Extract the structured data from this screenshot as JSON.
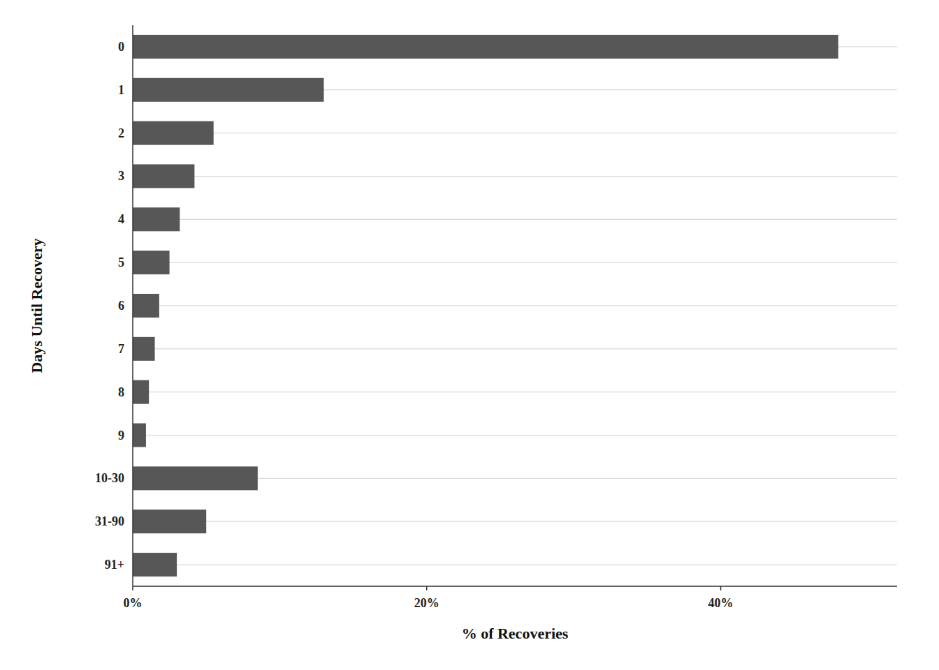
{
  "chart_data": {
    "type": "bar",
    "orientation": "horizontal",
    "categories": [
      "0",
      "1",
      "2",
      "3",
      "4",
      "5",
      "6",
      "7",
      "8",
      "9",
      "10-30",
      "31-90",
      "91+"
    ],
    "values": [
      48.0,
      13.0,
      5.5,
      4.2,
      3.2,
      2.5,
      1.8,
      1.5,
      1.1,
      0.9,
      8.5,
      5.0,
      3.0
    ],
    "color": "#575757",
    "xlabel": "% of Recoveries",
    "ylabel": "Days Until Recovery",
    "xlim": [
      0,
      52
    ],
    "xticks": [
      {
        "value": 0,
        "label": "0%"
      },
      {
        "value": 20,
        "label": "20%"
      },
      {
        "value": 40,
        "label": "40%"
      }
    ],
    "grid": true
  }
}
